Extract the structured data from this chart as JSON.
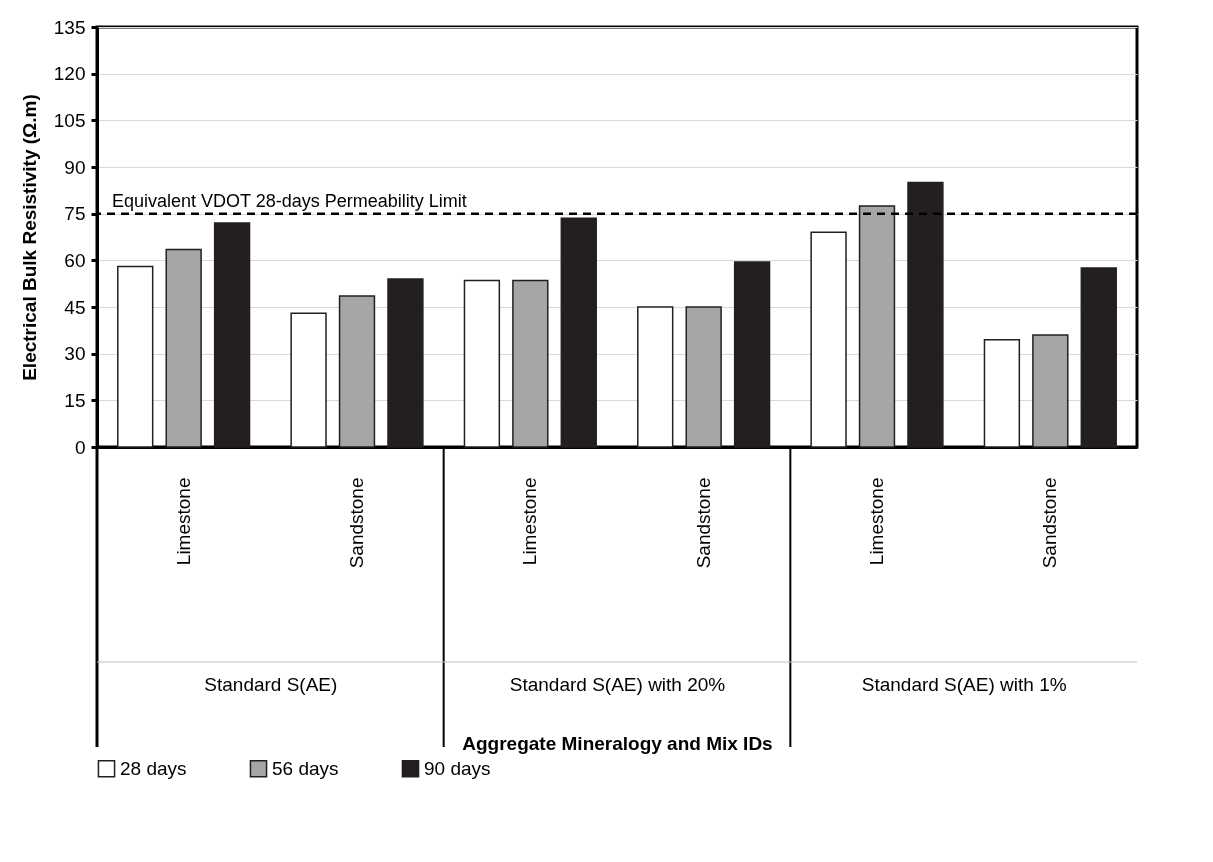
{
  "chart_data": {
    "type": "bar",
    "ylabel": "Electrical Bulk Resistivity (Ω.m)",
    "categories": [
      "Limestone",
      "Sandstone",
      "Limestone",
      "Sandstone",
      "Limestone",
      "Sandstone"
    ],
    "series": [
      {
        "name": "28 days",
        "color": "#ffffff",
        "values": [
          58,
          43,
          53.5,
          45,
          69,
          34.5
        ]
      },
      {
        "name": "56 days",
        "color": "#a6a6a6",
        "values": [
          63.5,
          48.5,
          53.5,
          45,
          77.5,
          36
        ]
      },
      {
        "name": "90 days",
        "color": "#231f20",
        "values": [
          72,
          54,
          73.5,
          59.5,
          85,
          57.5
        ]
      }
    ],
    "annotations": [
      "Standard S(AE)",
      "Standard S(AE) with 20%",
      "Standard S(AE) with 1%",
      "Aggregate Mineralogy and Mix IDs"
    ],
    "ylim": [
      0,
      135
    ],
    "yticks": [
      0,
      15,
      30,
      45,
      60,
      75,
      90,
      105,
      120,
      135
    ],
    "ref_lines": [
      {
        "axis": "y",
        "value": 75,
        "label": "Equivalent VDOT 28-days Permeability Limit",
        "color": "#000000",
        "line_style": "dashed"
      }
    ],
    "grid": "y",
    "legend": "bottom"
  }
}
